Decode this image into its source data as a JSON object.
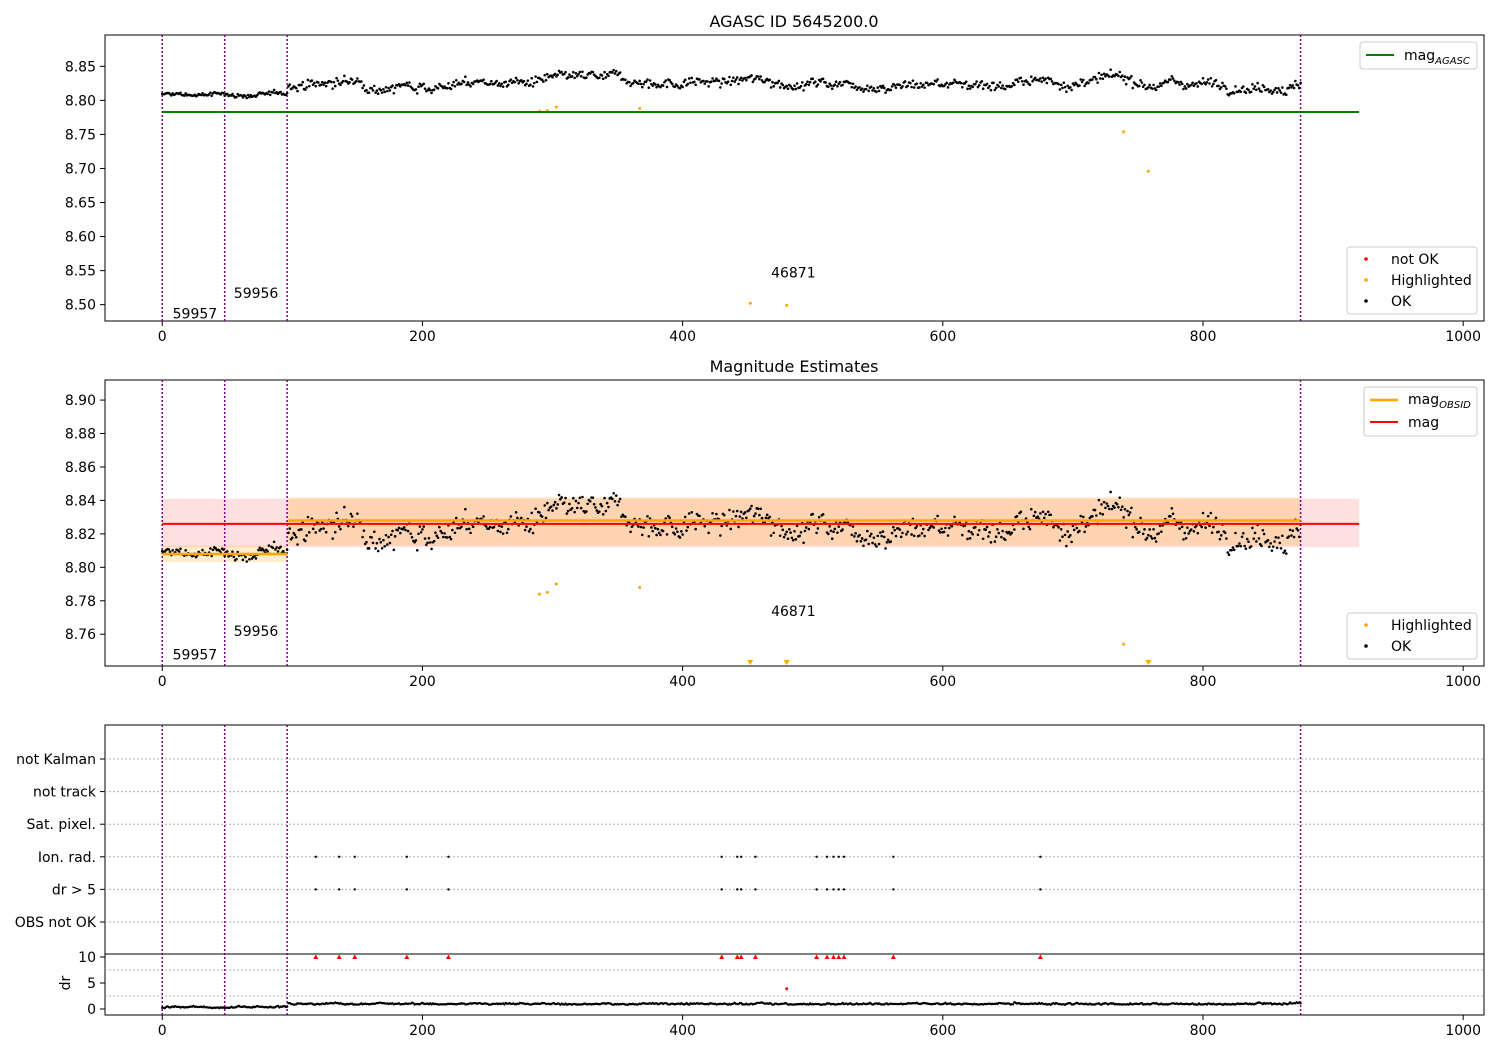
{
  "chart_data": [
    {
      "type": "scatter",
      "title": "AGASC ID 5645200.0",
      "xlim": [
        -44,
        1016
      ],
      "ylim": [
        8.476,
        8.896
      ],
      "x_ticks": [
        0,
        200,
        400,
        600,
        800,
        1000
      ],
      "y_ticks": [
        8.5,
        8.55,
        8.6,
        8.65,
        8.7,
        8.75,
        8.8,
        8.85
      ],
      "obsid_boundaries": [
        0,
        48,
        96,
        875
      ],
      "obsid_labels": [
        {
          "text": "59957",
          "x": 8,
          "y": 8.48
        },
        {
          "text": "59956",
          "x": 55,
          "y": 8.51
        },
        {
          "text": "46871",
          "x": 468,
          "y": 8.54
        }
      ],
      "reference_line": {
        "name": "mag",
        "subscript": "AGASC",
        "y": 8.783,
        "x_range": [
          0,
          920
        ],
        "color": "#008000"
      },
      "legend_top": [
        {
          "label": "mag",
          "subscript": "AGASC",
          "color": "#008000"
        }
      ],
      "legend_bottom": [
        {
          "label": "not OK",
          "color": "#ff0000"
        },
        {
          "label": "Highlighted",
          "color": "#ffa500"
        },
        {
          "label": "OK",
          "color": "#000000"
        }
      ],
      "segments": [
        {
          "x_start": 0,
          "x_end": 96,
          "mean": 8.808,
          "noise": 0.005
        },
        {
          "x_start": 97,
          "x_end": 875,
          "mean": 8.827,
          "noise": 0.011
        }
      ],
      "highlighted_points": [
        {
          "x": 290,
          "y": 8.784
        },
        {
          "x": 296,
          "y": 8.785
        },
        {
          "x": 303,
          "y": 8.79
        },
        {
          "x": 367,
          "y": 8.788
        },
        {
          "x": 452,
          "y": 8.502
        },
        {
          "x": 480,
          "y": 8.499
        },
        {
          "x": 739,
          "y": 8.754
        },
        {
          "x": 758,
          "y": 8.696
        }
      ]
    },
    {
      "type": "scatter",
      "title": "Magnitude Estimates",
      "xlim": [
        -44,
        1016
      ],
      "ylim": [
        8.741,
        8.912
      ],
      "x_ticks": [
        0,
        200,
        400,
        600,
        800,
        1000
      ],
      "y_ticks": [
        8.76,
        8.78,
        8.8,
        8.82,
        8.84,
        8.86,
        8.88,
        8.9
      ],
      "obsid_labels": [
        {
          "text": "59957",
          "x": 8,
          "y": 8.745
        },
        {
          "text": "59956",
          "x": 55,
          "y": 8.759
        },
        {
          "text": "46871",
          "x": 468,
          "y": 8.771
        }
      ],
      "mag_line": {
        "y": 8.826,
        "band": [
          8.812,
          8.841
        ],
        "x_range": [
          0,
          920
        ],
        "color": "#ff0000"
      },
      "obsid_means": [
        {
          "x_range": [
            0,
            96
          ],
          "y": 8.808,
          "band": [
            8.803,
            8.813
          ]
        },
        {
          "x_range": [
            97,
            875
          ],
          "y": 8.828,
          "band": [
            8.813,
            8.842
          ]
        }
      ],
      "highlighted_offscale_x": [
        452,
        480,
        758
      ],
      "legend_top": [
        {
          "label": "mag",
          "subscript": "OBSID",
          "color": "#ffa500"
        },
        {
          "label": "mag",
          "subscript": "",
          "color": "#ff0000"
        }
      ],
      "legend_bottom": [
        {
          "label": "Highlighted",
          "color": "#ffa500"
        },
        {
          "label": "OK",
          "color": "#000000"
        }
      ]
    },
    {
      "type": "scatter",
      "xlim": [
        -44,
        1016
      ],
      "x_ticks": [
        0,
        200,
        400,
        600,
        800,
        1000
      ],
      "flag_rows": [
        "not Kalman",
        "not track",
        "Sat. pixel.",
        "Ion. rad.",
        "dr > 5",
        "OBS not OK"
      ],
      "flag_x": [
        118,
        136,
        148,
        188,
        220,
        430,
        442,
        445,
        456,
        503,
        511,
        516,
        520,
        524,
        562,
        675
      ],
      "flagged_rows": [
        "Ion. rad.",
        "dr > 5"
      ],
      "dr_ylabel": "dr",
      "dr_ylim": [
        -1,
        11
      ],
      "dr_ticks": [
        0,
        5,
        10
      ],
      "dr_outlier": {
        "x": 480,
        "y": 3.9
      }
    }
  ]
}
